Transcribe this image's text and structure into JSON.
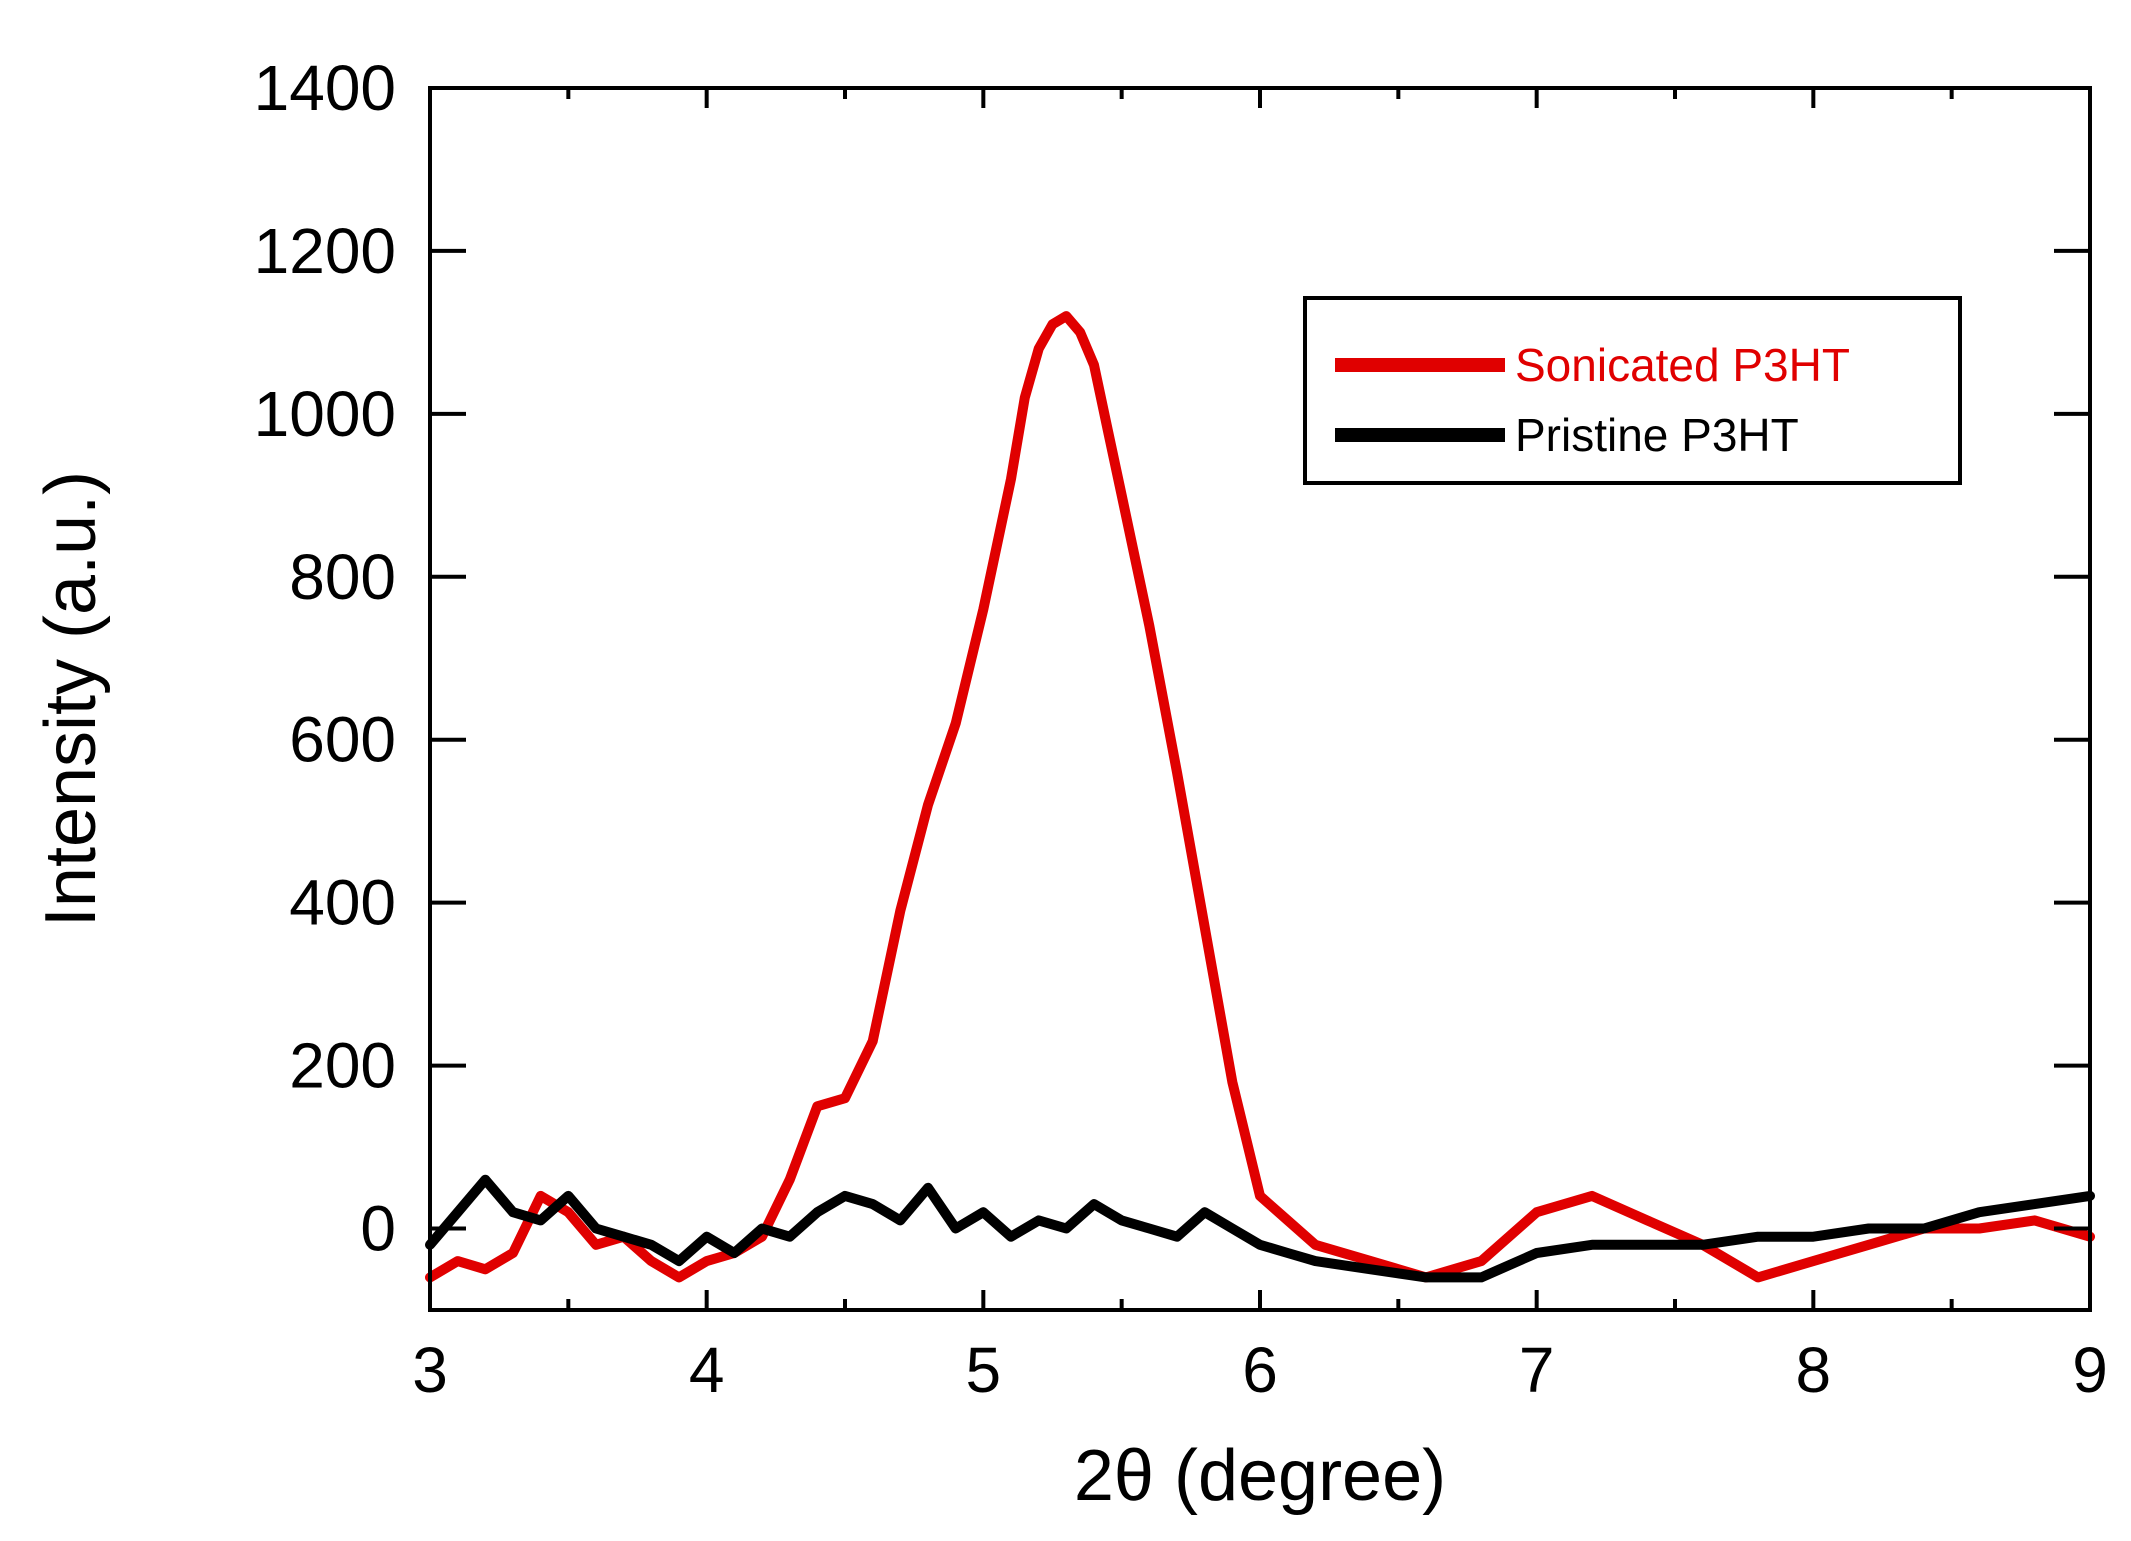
{
  "chart_data": {
    "type": "line",
    "title": "",
    "xlabel": "2θ (degree)",
    "ylabel": "Intensity (a.u.)",
    "xlim": [
      3,
      9
    ],
    "ylim": [
      -100,
      1400
    ],
    "x_ticks": [
      3,
      4,
      5,
      6,
      7,
      8,
      9
    ],
    "y_ticks": [
      0,
      200,
      400,
      600,
      800,
      1000,
      1200,
      1400
    ],
    "grid": false,
    "legend_position": "top-right",
    "series": [
      {
        "name": "Sonicated P3HT",
        "color": "#e00000",
        "x": [
          3.0,
          3.1,
          3.2,
          3.3,
          3.4,
          3.5,
          3.6,
          3.7,
          3.8,
          3.9,
          4.0,
          4.1,
          4.2,
          4.3,
          4.4,
          4.5,
          4.6,
          4.7,
          4.8,
          4.9,
          5.0,
          5.1,
          5.15,
          5.2,
          5.25,
          5.3,
          5.35,
          5.4,
          5.45,
          5.5,
          5.6,
          5.7,
          5.8,
          5.9,
          6.0,
          6.1,
          6.2,
          6.4,
          6.6,
          6.8,
          7.0,
          7.2,
          7.4,
          7.6,
          7.8,
          8.0,
          8.2,
          8.4,
          8.6,
          8.8,
          9.0
        ],
        "y": [
          -60,
          -40,
          -50,
          -30,
          40,
          20,
          -20,
          -10,
          -40,
          -60,
          -40,
          -30,
          -10,
          60,
          150,
          160,
          230,
          390,
          520,
          620,
          760,
          920,
          1020,
          1080,
          1110,
          1120,
          1100,
          1060,
          980,
          900,
          740,
          560,
          370,
          180,
          40,
          10,
          -20,
          -40,
          -60,
          -40,
          20,
          40,
          10,
          -20,
          -60,
          -40,
          -20,
          0,
          0,
          10,
          -10
        ]
      },
      {
        "name": "Pristine P3HT",
        "color": "#000000",
        "x": [
          3.0,
          3.1,
          3.2,
          3.3,
          3.4,
          3.5,
          3.6,
          3.7,
          3.8,
          3.9,
          4.0,
          4.1,
          4.2,
          4.3,
          4.4,
          4.5,
          4.6,
          4.7,
          4.8,
          4.9,
          5.0,
          5.1,
          5.2,
          5.3,
          5.4,
          5.5,
          5.6,
          5.7,
          5.8,
          5.9,
          6.0,
          6.1,
          6.2,
          6.4,
          6.6,
          6.8,
          7.0,
          7.2,
          7.4,
          7.6,
          7.8,
          8.0,
          8.2,
          8.4,
          8.6,
          8.8,
          9.0
        ],
        "y": [
          -20,
          20,
          60,
          20,
          10,
          40,
          0,
          -10,
          -20,
          -40,
          -10,
          -30,
          0,
          -10,
          20,
          40,
          30,
          10,
          50,
          0,
          20,
          -10,
          10,
          0,
          30,
          10,
          0,
          -10,
          20,
          0,
          -20,
          -30,
          -40,
          -50,
          -60,
          -60,
          -30,
          -20,
          -20,
          -20,
          -10,
          -10,
          0,
          0,
          20,
          30,
          40
        ]
      }
    ]
  }
}
